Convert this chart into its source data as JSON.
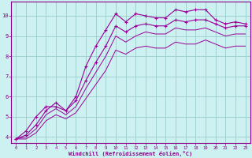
{
  "xlabel": "Windchill (Refroidissement éolien,°C)",
  "bg_color": "#cdf0f0",
  "line_color": "#990099",
  "grid_color": "#aaddcc",
  "xlim": [
    -0.5,
    23.5
  ],
  "ylim": [
    3.7,
    10.7
  ],
  "xticks": [
    0,
    1,
    2,
    3,
    4,
    5,
    6,
    7,
    8,
    9,
    10,
    11,
    12,
    13,
    14,
    15,
    16,
    17,
    18,
    19,
    20,
    21,
    22,
    23
  ],
  "yticks": [
    4,
    5,
    6,
    7,
    8,
    9,
    10
  ],
  "series": [
    {
      "x": [
        0,
        1,
        2,
        3,
        4,
        5,
        6,
        7,
        8,
        9,
        10,
        11,
        12,
        13,
        14,
        15,
        16,
        17,
        18,
        19,
        20,
        21,
        22,
        23
      ],
      "y": [
        3.9,
        4.3,
        5.0,
        5.5,
        5.5,
        5.3,
        6.0,
        7.5,
        8.5,
        9.3,
        10.1,
        9.7,
        10.1,
        10.0,
        9.9,
        9.9,
        10.3,
        10.2,
        10.3,
        10.3,
        9.8,
        9.6,
        9.7,
        9.6
      ],
      "marker": true,
      "linestyle": "solid"
    },
    {
      "x": [
        0,
        1,
        2,
        3,
        4,
        5,
        6,
        7,
        8,
        9,
        10,
        11,
        12,
        13,
        14,
        15,
        16,
        17,
        18,
        19,
        20,
        21,
        22,
        23
      ],
      "y": [
        3.9,
        4.1,
        4.6,
        5.3,
        5.7,
        5.3,
        5.8,
        6.8,
        7.7,
        8.5,
        9.5,
        9.2,
        9.5,
        9.6,
        9.5,
        9.5,
        9.8,
        9.7,
        9.8,
        9.8,
        9.6,
        9.4,
        9.5,
        9.5
      ],
      "marker": true,
      "linestyle": "solid"
    },
    {
      "x": [
        0,
        1,
        2,
        3,
        4,
        5,
        6,
        7,
        8,
        9,
        10,
        11,
        12,
        13,
        14,
        15,
        16,
        17,
        18,
        19,
        20,
        21,
        22,
        23
      ],
      "y": [
        3.9,
        4.0,
        4.4,
        5.1,
        5.4,
        5.1,
        5.5,
        6.4,
        7.2,
        8.0,
        9.0,
        8.7,
        9.0,
        9.2,
        9.1,
        9.1,
        9.4,
        9.3,
        9.3,
        9.4,
        9.2,
        9.0,
        9.1,
        9.1
      ],
      "marker": false,
      "linestyle": "solid"
    },
    {
      "x": [
        0,
        1,
        2,
        3,
        4,
        5,
        6,
        7,
        8,
        9,
        10,
        11,
        12,
        13,
        14,
        15,
        16,
        17,
        18,
        19,
        20,
        21,
        22,
        23
      ],
      "y": [
        3.9,
        3.9,
        4.2,
        4.8,
        5.1,
        4.9,
        5.2,
        5.9,
        6.6,
        7.3,
        8.3,
        8.1,
        8.4,
        8.5,
        8.4,
        8.4,
        8.7,
        8.6,
        8.6,
        8.8,
        8.6,
        8.4,
        8.5,
        8.5
      ],
      "marker": false,
      "linestyle": "solid"
    }
  ]
}
